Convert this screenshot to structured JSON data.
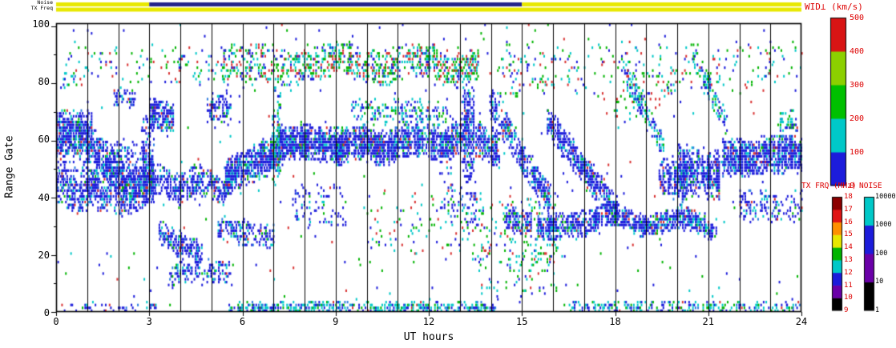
{
  "header": {
    "wid_title": "WID⊥ (km/s)",
    "tx_title": "TX FRQ (MHz)",
    "noise_title": "NOISE",
    "noise_strip_label": "Noise",
    "txfreq_strip_label": "TX Freq"
  },
  "axes": {
    "x_title": "UT hours",
    "y_title": "Range Gate",
    "x_ticks": [
      "0",
      "3",
      "6",
      "9",
      "12",
      "15",
      "18",
      "21",
      "24"
    ],
    "y_ticks": [
      "100",
      "80",
      "60",
      "40",
      "20",
      "0"
    ]
  },
  "colorbars": {
    "wid": {
      "title": "WID⊥ (km/s)",
      "labels": [
        "500",
        "400",
        "300",
        "200",
        "100",
        "0"
      ],
      "colors_bottom_to_top": [
        "#1c1cdb",
        "#00c8c8",
        "#00c000",
        "#8cd000",
        "#d81414"
      ]
    },
    "tx": {
      "title": "TX FRQ (MHz)",
      "labels_top_to_bottom": [
        "18",
        "17",
        "16",
        "15",
        "14",
        "13",
        "12",
        "11",
        "10",
        "9"
      ],
      "colors_bottom_to_top": [
        "#000000",
        "#6a00a8",
        "#1c1cdb",
        "#00c8c8",
        "#00b400",
        "#e8e800",
        "#ff9000",
        "#e01414",
        "#8c0000"
      ]
    },
    "noise": {
      "title": "NOISE",
      "labels_top_to_bottom": [
        "10000",
        "1000",
        "100",
        "10",
        "1"
      ],
      "colors_bottom_to_top": [
        "#000000",
        "#6a00a8",
        "#1c1cdb",
        "#00c8c8"
      ]
    }
  },
  "chart_data": {
    "type": "scatter-heatmap",
    "title": "WID⊥ (km/s)",
    "xlabel": "UT hours",
    "ylabel": "Range Gate",
    "xlim": [
      0,
      24
    ],
    "ylim": [
      0,
      101
    ],
    "x_gridlines_every_hours": 1,
    "x_major_tick_every_hours": 3,
    "y_major_tick_every_gates": 20,
    "seed": 20240,
    "strips": {
      "noise_segments": [
        {
          "t0": 0,
          "t1": 3,
          "color": "#e8e800"
        },
        {
          "t0": 3,
          "t1": 15,
          "color": "#24248a"
        },
        {
          "t0": 15,
          "t1": 24,
          "color": "#e8e800"
        }
      ],
      "txfreq_segments": [
        {
          "t0": 0,
          "t1": 24,
          "color": "#e8e800"
        }
      ]
    },
    "palettes": {
      "blue": [
        [
          "#1c1cdb",
          0.72
        ],
        [
          "#00c8c8",
          0.14
        ],
        [
          "#2e7de0",
          0.06
        ],
        [
          "#00b400",
          0.04
        ],
        [
          "#d83030",
          0.04
        ]
      ],
      "cyan": [
        [
          "#00c8c8",
          0.45
        ],
        [
          "#1c1cdb",
          0.3
        ],
        [
          "#00b400",
          0.17
        ],
        [
          "#2e7de0",
          0.05
        ],
        [
          "#d83030",
          0.03
        ]
      ],
      "mix": [
        [
          "#00c8c8",
          0.3
        ],
        [
          "#00b400",
          0.32
        ],
        [
          "#1c1cdb",
          0.2
        ],
        [
          "#d83030",
          0.18
        ]
      ],
      "floor": [
        [
          "#1c1cdb",
          0.5
        ],
        [
          "#00c8c8",
          0.2
        ],
        [
          "#00b400",
          0.15
        ],
        [
          "#d83030",
          0.15
        ]
      ]
    },
    "background_noise": {
      "p1": 0.5,
      "p2": 0.1,
      "palette": "floor"
    },
    "bands_fields": [
      "t_start_h",
      "t_end_h",
      "gate_center_start",
      "gate_center_end",
      "gate_half_width",
      "density",
      "palette",
      "wobble_amp_gates",
      "wobble_period_h"
    ],
    "bands": [
      [
        0.0,
        1.15,
        63,
        62,
        7,
        0.8,
        "blue",
        0,
        1
      ],
      [
        0.0,
        2.2,
        42,
        40,
        6,
        0.5,
        "blue",
        1.5,
        1.2
      ],
      [
        1.0,
        2.25,
        60,
        44,
        6,
        0.7,
        "blue",
        0,
        1
      ],
      [
        2.1,
        3.1,
        40,
        46,
        7,
        0.75,
        "blue",
        0,
        1
      ],
      [
        1.85,
        2.55,
        75,
        74,
        3,
        0.55,
        "blue",
        0,
        1
      ],
      [
        2.75,
        3.15,
        52,
        54,
        16,
        0.5,
        "blue",
        0,
        1
      ],
      [
        0.05,
        0.6,
        83,
        82,
        5,
        0.18,
        "cyan",
        0,
        1
      ],
      [
        3.0,
        3.75,
        69,
        67,
        5,
        0.75,
        "blue",
        0,
        1
      ],
      [
        3.0,
        5.5,
        45,
        43,
        5,
        0.6,
        "blue",
        1.5,
        1.5
      ],
      [
        3.3,
        4.7,
        27,
        19,
        4,
        0.6,
        "blue",
        0,
        1
      ],
      [
        3.6,
        5.6,
        13,
        14,
        4,
        0.33,
        "blue",
        0,
        1
      ],
      [
        4.85,
        5.6,
        71,
        70,
        5,
        0.5,
        "blue",
        0,
        1
      ],
      [
        5.4,
        7.3,
        46,
        57,
        6,
        0.8,
        "blue",
        0,
        1
      ],
      [
        5.2,
        7.0,
        29,
        26,
        4,
        0.5,
        "blue",
        0,
        1
      ],
      [
        5.3,
        7.6,
        86,
        85,
        7,
        0.3,
        "mix",
        0,
        1
      ],
      [
        6.95,
        7.2,
        60,
        62,
        16,
        0.5,
        "cyan",
        0,
        1
      ],
      [
        7.2,
        9.2,
        59,
        58,
        5.5,
        0.82,
        "blue",
        0,
        1
      ],
      [
        7.6,
        13.6,
        87,
        86,
        5.5,
        0.42,
        "mix",
        2,
        2.5
      ],
      [
        9.0,
        13.1,
        57,
        60,
        5.5,
        0.85,
        "blue",
        1.5,
        1.8
      ],
      [
        7.6,
        9.4,
        37,
        36,
        7,
        0.15,
        "blue",
        0,
        1
      ],
      [
        9.5,
        12.6,
        70,
        69,
        4,
        0.3,
        "cyan",
        0,
        1
      ],
      [
        12.4,
        13.5,
        40,
        38,
        11,
        0.15,
        "blue",
        0,
        1
      ],
      [
        13.05,
        13.45,
        63,
        62,
        15,
        0.6,
        "blue",
        0,
        1
      ],
      [
        13.5,
        14.25,
        60,
        57,
        6,
        0.7,
        "blue",
        0,
        1
      ],
      [
        13.95,
        15.9,
        73,
        38,
        5,
        0.68,
        "blue",
        0,
        1
      ],
      [
        14.4,
        15.3,
        33,
        30,
        4,
        0.6,
        "blue",
        0,
        1
      ],
      [
        13.6,
        16.2,
        22,
        24,
        17,
        0.1,
        "mix",
        0,
        1
      ],
      [
        14.2,
        16.1,
        85,
        84,
        9,
        0.12,
        "mix",
        0,
        1
      ],
      [
        15.8,
        18.15,
        66,
        33,
        5,
        0.7,
        "blue",
        0,
        1
      ],
      [
        15.5,
        17.4,
        29,
        31,
        4,
        0.68,
        "blue",
        0,
        1
      ],
      [
        17.3,
        21.25,
        32,
        30,
        3.5,
        0.75,
        "blue",
        2,
        2.2
      ],
      [
        18.25,
        19.55,
        84,
        57,
        4,
        0.5,
        "cyan",
        0,
        1
      ],
      [
        19.4,
        20.3,
        47,
        44,
        6,
        0.6,
        "blue",
        0,
        1
      ],
      [
        20.0,
        21.35,
        50,
        47,
        8,
        0.8,
        "blue",
        0,
        1
      ],
      [
        20.5,
        21.6,
        90,
        64,
        4,
        0.45,
        "cyan",
        0,
        1
      ],
      [
        21.45,
        24.0,
        54,
        54,
        6,
        0.85,
        "blue",
        1,
        3
      ],
      [
        22.0,
        24.0,
        37,
        36,
        5,
        0.28,
        "blue",
        0,
        1
      ],
      [
        23.3,
        23.85,
        66,
        65,
        4,
        0.5,
        "cyan",
        0,
        1
      ],
      [
        16.3,
        24.0,
        1,
        1,
        2,
        0.38,
        "cyan",
        0,
        1
      ],
      [
        5.55,
        14.2,
        1,
        1,
        2,
        0.6,
        "cyan",
        0,
        1
      ],
      [
        0.0,
        3.2,
        1,
        1,
        1.5,
        0.22,
        "blue",
        0,
        1
      ],
      [
        16.0,
        24.0,
        86,
        85,
        9,
        0.07,
        "mix",
        0,
        1
      ],
      [
        0.3,
        5.2,
        86,
        85,
        7,
        0.06,
        "mix",
        0,
        1
      ],
      [
        10.0,
        13.8,
        30,
        28,
        12,
        0.05,
        "mix",
        0,
        1
      ],
      [
        17.5,
        20.0,
        68,
        80,
        6,
        0.1,
        "mix",
        0,
        1
      ],
      [
        0.0,
        2.9,
        52,
        50,
        9,
        0.3,
        "blue",
        0,
        1
      ]
    ]
  }
}
